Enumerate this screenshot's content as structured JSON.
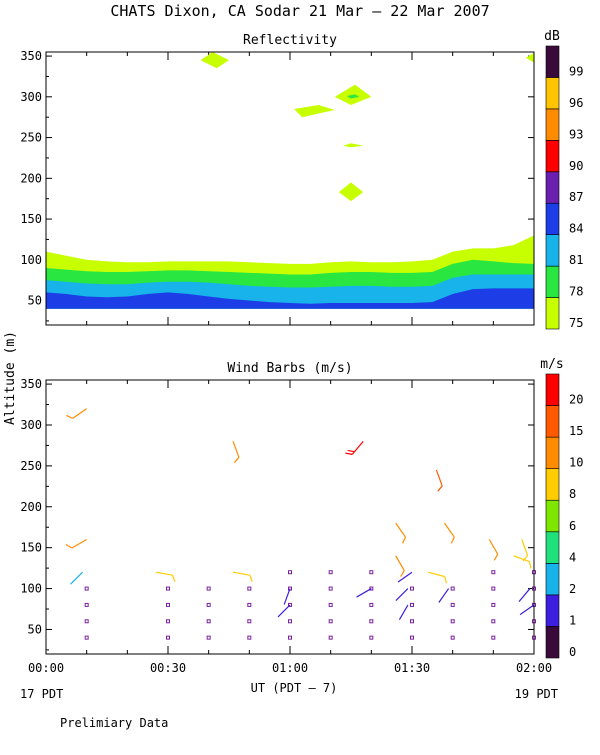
{
  "title": "CHATS Dixon, CA  Sodar  21 Mar — 22 Mar 2007",
  "footer_note": "Prelimiary Data",
  "colors": {
    "ink": "#000000",
    "reflectivity_scale": [
      "#c8ff00",
      "#29e641",
      "#17b3ea",
      "#1d3de6",
      "#6a1fb0",
      "#ff0000",
      "#ff8c00",
      "#ffc400",
      "#3a0a3a"
    ],
    "wind_scale": [
      "#3a0a3a",
      "#3d1fe0",
      "#17b3ea",
      "#1fe07a",
      "#7fe600",
      "#ffcc00",
      "#ff8c00",
      "#ff5a00",
      "#ff0000"
    ],
    "dot": "#7a1fa0"
  },
  "chart_data": [
    {
      "type": "area",
      "title": "Reflectivity",
      "xlabel": "UT  (PDT — 7)",
      "ylabel": "Altitude  (m)",
      "xlim": [
        0,
        120
      ],
      "ylim": [
        20,
        355
      ],
      "x_ticks": [
        0,
        30,
        60,
        90,
        120
      ],
      "x_tick_labels": [
        "00:00",
        "00:30",
        "01:00",
        "01:30",
        "02:00"
      ],
      "y_ticks": [
        50,
        100,
        150,
        200,
        250,
        300,
        350
      ],
      "y_tick_labels": [
        "50",
        "100",
        "150",
        "200",
        "250",
        "300",
        "350"
      ],
      "colorbar": {
        "unit": "dB",
        "labels": [
          "75",
          "78",
          "81",
          "84",
          "87",
          "90",
          "93",
          "96",
          "99"
        ]
      },
      "x": [
        0,
        5,
        10,
        15,
        20,
        25,
        30,
        35,
        40,
        45,
        50,
        55,
        60,
        65,
        70,
        75,
        80,
        85,
        90,
        95,
        100,
        105,
        110,
        115,
        120
      ],
      "series": [
        {
          "name": "75 dB top",
          "values": [
            110,
            105,
            100,
            98,
            97,
            97,
            98,
            98,
            98,
            98,
            97,
            96,
            95,
            95,
            97,
            98,
            97,
            97,
            98,
            100,
            110,
            114,
            114,
            118,
            130
          ]
        },
        {
          "name": "78 dB top",
          "values": [
            90,
            88,
            86,
            85,
            85,
            86,
            87,
            87,
            86,
            85,
            84,
            83,
            82,
            82,
            84,
            85,
            85,
            84,
            84,
            85,
            95,
            100,
            98,
            96,
            95
          ]
        },
        {
          "name": "81 dB top",
          "values": [
            75,
            73,
            71,
            70,
            70,
            72,
            73,
            73,
            72,
            70,
            68,
            67,
            66,
            66,
            67,
            68,
            68,
            67,
            67,
            68,
            78,
            82,
            82,
            82,
            82
          ]
        },
        {
          "name": "84 dB top",
          "values": [
            60,
            58,
            55,
            54,
            55,
            58,
            60,
            58,
            55,
            52,
            50,
            48,
            47,
            46,
            47,
            47,
            47,
            47,
            47,
            48,
            58,
            64,
            65,
            65,
            65
          ]
        }
      ],
      "base": 40,
      "patches": [
        {
          "label": "75 dB",
          "points": [
            [
              38,
              345
            ],
            [
              41,
              355
            ],
            [
              45,
              345
            ],
            [
              42,
              335
            ]
          ]
        },
        {
          "label": "75 dB",
          "points": [
            [
              71,
              300
            ],
            [
              76,
              315
            ],
            [
              80,
              300
            ],
            [
              75,
              290
            ]
          ]
        },
        {
          "label": "75 dB",
          "points": [
            [
              61,
              285
            ],
            [
              67,
              290
            ],
            [
              71,
              284
            ],
            [
              63,
              275
            ]
          ]
        },
        {
          "label": "75 dB",
          "points": [
            [
              73,
              240
            ],
            [
              75,
              243
            ],
            [
              78,
              240
            ],
            [
              75,
              238
            ]
          ]
        },
        {
          "label": "75 dB",
          "points": [
            [
              72,
              183
            ],
            [
              75,
              195
            ],
            [
              78,
              183
            ],
            [
              75,
              172
            ]
          ]
        },
        {
          "label": "75 dB",
          "points": [
            [
              118,
              348
            ],
            [
              120,
              342
            ],
            [
              120,
              354
            ]
          ]
        },
        {
          "label": "78 dB",
          "points": [
            [
              74,
              301
            ],
            [
              76,
              303
            ],
            [
              77,
              300
            ],
            [
              75,
              298
            ]
          ]
        }
      ]
    },
    {
      "type": "scatter",
      "title": "Wind Barbs (m/s)",
      "xlim": [
        0,
        120
      ],
      "ylim": [
        20,
        355
      ],
      "x_ticks": [
        0,
        30,
        60,
        90,
        120
      ],
      "x_tick_labels": [
        "00:00",
        "00:30",
        "01:00",
        "01:30",
        "02:00"
      ],
      "y_ticks": [
        50,
        100,
        150,
        200,
        250,
        300,
        350
      ],
      "y_tick_labels": [
        "50",
        "100",
        "150",
        "200",
        "250",
        "300",
        "350"
      ],
      "colorbar": {
        "unit": "m/s",
        "labels": [
          "0",
          "1",
          "2",
          "4",
          "6",
          "8",
          "10",
          "15",
          "20"
        ]
      },
      "date_labels": {
        "start": "17 PDT",
        "end": "19 PDT"
      },
      "calm_points": {
        "x": [
          10,
          30,
          40,
          50,
          60,
          70,
          80,
          90,
          100,
          110,
          120
        ],
        "altitudes": [
          40,
          60,
          80,
          100
        ],
        "x_top": [
          60,
          70,
          80,
          110,
          120
        ],
        "top_altitude": 120
      },
      "barbs": [
        {
          "x": 10,
          "y": 320,
          "dir": 235,
          "speed": 10
        },
        {
          "x": 46,
          "y": 280,
          "dir": 160,
          "speed": 10
        },
        {
          "x": 78,
          "y": 280,
          "dir": 220,
          "speed": 20
        },
        {
          "x": 96,
          "y": 245,
          "dir": 160,
          "speed": 15
        },
        {
          "x": 10,
          "y": 160,
          "dir": 240,
          "speed": 10
        },
        {
          "x": 86,
          "y": 180,
          "dir": 145,
          "speed": 10
        },
        {
          "x": 98,
          "y": 180,
          "dir": 145,
          "speed": 10
        },
        {
          "x": 109,
          "y": 160,
          "dir": 150,
          "speed": 10
        },
        {
          "x": 117,
          "y": 160,
          "dir": 160,
          "speed": 8
        },
        {
          "x": 86,
          "y": 140,
          "dir": 150,
          "speed": 10
        },
        {
          "x": 115,
          "y": 140,
          "dir": 110,
          "speed": 8
        },
        {
          "x": 9,
          "y": 120,
          "dir": 225,
          "speed": 2
        },
        {
          "x": 27,
          "y": 120,
          "dir": 100,
          "speed": 8
        },
        {
          "x": 46,
          "y": 120,
          "dir": 100,
          "speed": 8
        },
        {
          "x": 94,
          "y": 120,
          "dir": 105,
          "speed": 8
        },
        {
          "x": 90,
          "y": 120,
          "dir": 235,
          "speed": 1
        },
        {
          "x": 60,
          "y": 100,
          "dir": 200,
          "speed": 1
        },
        {
          "x": 60,
          "y": 80,
          "dir": 225,
          "speed": 1
        },
        {
          "x": 80,
          "y": 100,
          "dir": 240,
          "speed": 1
        },
        {
          "x": 89,
          "y": 100,
          "dir": 225,
          "speed": 1
        },
        {
          "x": 89,
          "y": 80,
          "dir": 210,
          "speed": 1
        },
        {
          "x": 99,
          "y": 100,
          "dir": 215,
          "speed": 1
        },
        {
          "x": 119,
          "y": 100,
          "dir": 220,
          "speed": 1
        },
        {
          "x": 120,
          "y": 80,
          "dir": 235,
          "speed": 1
        }
      ]
    }
  ]
}
